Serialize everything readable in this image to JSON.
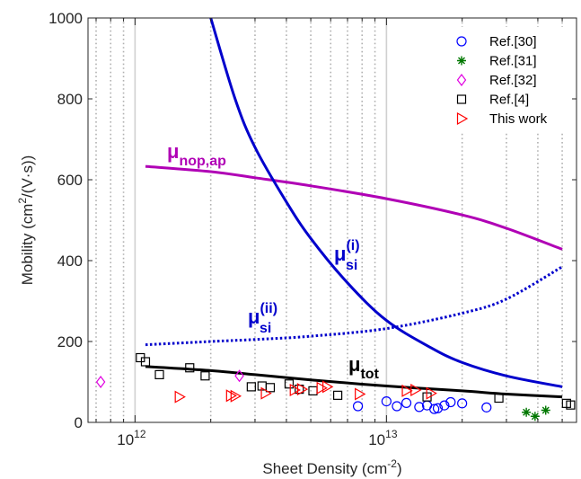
{
  "chart_data": {
    "type": "scatter",
    "xlabel": "Sheet Density (cm",
    "xlabel_sup": "-2",
    "xlabel_end": ")",
    "ylabel": "Mobility (cm",
    "ylabel_sup": "2",
    "ylabel_end": "/(V·s))",
    "xscale": "log",
    "xlim": [
      650000000000.0,
      57000000000000.0
    ],
    "ylim": [
      0,
      1000
    ],
    "yticks": [
      0,
      200,
      400,
      600,
      800,
      1000
    ],
    "xticks": [
      {
        "value": 1000000000000.0,
        "base": "10",
        "exp": "12"
      },
      {
        "value": 10000000000000.0,
        "base": "10",
        "exp": "13"
      }
    ],
    "grid": "vertical dotted at minor log ticks",
    "legend_position": "top-right",
    "curves": [
      {
        "id": "nop",
        "color": "#b000b5",
        "style": "solid",
        "x": [
          1100000000000.0,
          2000000000000.0,
          3000000000000.0,
          5000000000000.0,
          10000000000000.0,
          20000000000000.0,
          30000000000000.0,
          50000000000000.0
        ],
        "y": [
          633,
          620,
          605,
          585,
          553,
          513,
          480,
          428
        ]
      },
      {
        "id": "si1",
        "color": "#0000cc",
        "style": "solid",
        "x": [
          2000000000000.0,
          2500000000000.0,
          3000000000000.0,
          4000000000000.0,
          5000000000000.0,
          7000000000000.0,
          10000000000000.0,
          15000000000000.0,
          20000000000000.0,
          30000000000000.0,
          50000000000000.0
        ],
        "y": [
          1000,
          800,
          680,
          545,
          455,
          345,
          252,
          185,
          148,
          115,
          88
        ]
      },
      {
        "id": "si2",
        "color": "#0000cc",
        "style": "dotted",
        "x": [
          1100000000000.0,
          2000000000000.0,
          3000000000000.0,
          5000000000000.0,
          10000000000000.0,
          20000000000000.0,
          30000000000000.0,
          50000000000000.0
        ],
        "y": [
          192,
          200,
          205,
          213,
          232,
          270,
          305,
          385
        ]
      },
      {
        "id": "tot",
        "color": "#000000",
        "style": "solid",
        "x": [
          1100000000000.0,
          2000000000000.0,
          3000000000000.0,
          5000000000000.0,
          10000000000000.0,
          20000000000000.0,
          30000000000000.0,
          50000000000000.0
        ],
        "y": [
          138,
          128,
          118,
          105,
          90,
          78,
          70,
          63
        ]
      }
    ],
    "annotations": [
      {
        "id": "nop",
        "text": "μ",
        "sub": "nop,ap",
        "sup": "",
        "color": "#b000b5"
      },
      {
        "id": "si1",
        "text": "μ",
        "sub": "si",
        "sup": "(i)",
        "color": "#0000cc"
      },
      {
        "id": "si2",
        "text": "μ",
        "sub": "si",
        "sup": "(ii)",
        "color": "#0000cc"
      },
      {
        "id": "tot",
        "text": "μ",
        "sub": "tot",
        "sup": "",
        "color": "#000000"
      }
    ],
    "series": [
      {
        "name": "Ref.[30]",
        "marker": "circle",
        "color": "#0000ff",
        "x": [
          7700000000000.0,
          10000000000000.0,
          11000000000000.0,
          12000000000000.0,
          13500000000000.0,
          14500000000000.0,
          15500000000000.0,
          16000000000000.0,
          17000000000000.0,
          18000000000000.0,
          20000000000000.0,
          25000000000000.0
        ],
        "y": [
          40,
          52,
          40,
          48,
          38,
          42,
          33,
          35,
          42,
          50,
          47,
          37
        ]
      },
      {
        "name": "Ref.[31]",
        "marker": "asterisk",
        "color": "#007700",
        "x": [
          36000000000000.0,
          39000000000000.0,
          43000000000000.0
        ],
        "y": [
          25,
          15,
          30
        ]
      },
      {
        "name": "Ref.[32]",
        "marker": "diamond",
        "color": "#e000e0",
        "x": [
          730000000000.0,
          2600000000000.0
        ],
        "y": [
          100,
          115
        ]
      },
      {
        "name": "Ref.[4]",
        "marker": "square",
        "color": "#000000",
        "x": [
          1050000000000.0,
          1100000000000.0,
          1250000000000.0,
          1650000000000.0,
          1900000000000.0,
          2900000000000.0,
          3200000000000.0,
          3450000000000.0,
          4100000000000.0,
          4500000000000.0,
          5100000000000.0,
          6400000000000.0,
          14500000000000.0,
          28000000000000.0,
          52000000000000.0,
          54000000000000.0
        ],
        "y": [
          160,
          150,
          118,
          135,
          115,
          88,
          90,
          86,
          95,
          82,
          78,
          67,
          63,
          60,
          47,
          43
        ]
      },
      {
        "name": "This work",
        "marker": "triangle-right",
        "color": "#ff0000",
        "x": [
          1500000000000.0,
          2400000000000.0,
          2500000000000.0,
          3300000000000.0,
          4300000000000.0,
          4600000000000.0,
          5500000000000.0,
          5800000000000.0,
          7800000000000.0,
          12000000000000.0,
          13000000000000.0,
          15000000000000.0
        ],
        "y": [
          63,
          66,
          65,
          72,
          80,
          82,
          85,
          88,
          70,
          78,
          80,
          72
        ]
      }
    ]
  }
}
